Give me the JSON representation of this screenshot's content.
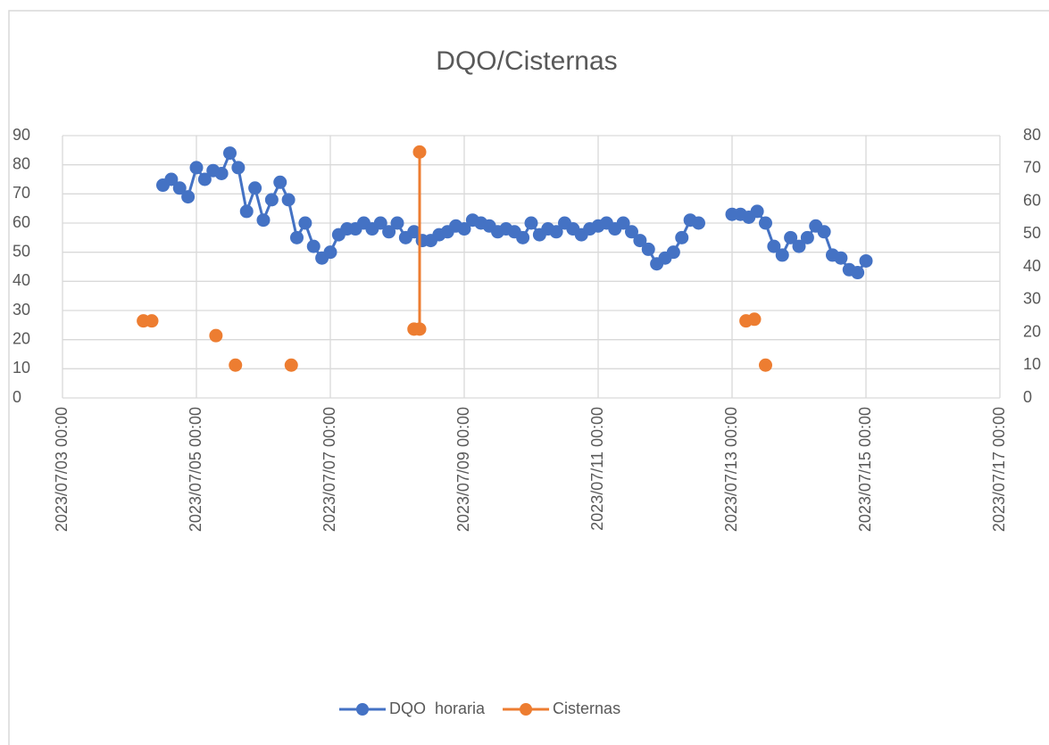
{
  "chart_data": {
    "type": "line",
    "title": "DQO/Cisternas",
    "xlim": [
      "2023/07/03 00:00",
      "2023/07/17 00:00"
    ],
    "xticks": [
      "2023/07/03 00:00",
      "2023/07/05 00:00",
      "2023/07/07 00:00",
      "2023/07/09 00:00",
      "2023/07/11 00:00",
      "2023/07/13 00:00",
      "2023/07/15 00:00",
      "2023/07/17 00:00"
    ],
    "ylim": [
      0,
      90
    ],
    "yticks": [
      0,
      10,
      20,
      30,
      40,
      50,
      60,
      70,
      80,
      90
    ],
    "y2lim": [
      0,
      80
    ],
    "y2ticks": [
      0,
      10,
      20,
      30,
      40,
      50,
      60,
      70,
      80
    ],
    "grid": true,
    "legend": "bottom",
    "series": [
      {
        "name": "DQO  horaria",
        "color": "#4472c4",
        "axis": "y",
        "x": [
          "2023/07/04 12:00",
          "2023/07/04 15:00",
          "2023/07/04 18:00",
          "2023/07/04 21:00",
          "2023/07/05 00:00",
          "2023/07/05 03:00",
          "2023/07/05 06:00",
          "2023/07/05 09:00",
          "2023/07/05 12:00",
          "2023/07/05 15:00",
          "2023/07/05 18:00",
          "2023/07/05 21:00",
          "2023/07/06 00:00",
          "2023/07/06 03:00",
          "2023/07/06 06:00",
          "2023/07/06 09:00",
          "2023/07/06 12:00",
          "2023/07/06 15:00",
          "2023/07/06 18:00",
          "2023/07/06 21:00",
          "2023/07/07 00:00",
          "2023/07/07 03:00",
          "2023/07/07 06:00",
          "2023/07/07 09:00",
          "2023/07/07 12:00",
          "2023/07/07 15:00",
          "2023/07/07 18:00",
          "2023/07/07 21:00",
          "2023/07/08 00:00",
          "2023/07/08 03:00",
          "2023/07/08 06:00",
          "2023/07/08 09:00",
          "2023/07/08 12:00",
          "2023/07/08 15:00",
          "2023/07/08 18:00",
          "2023/07/08 21:00",
          "2023/07/09 00:00",
          "2023/07/09 03:00",
          "2023/07/09 06:00",
          "2023/07/09 09:00",
          "2023/07/09 12:00",
          "2023/07/09 15:00",
          "2023/07/09 18:00",
          "2023/07/09 21:00",
          "2023/07/10 00:00",
          "2023/07/10 03:00",
          "2023/07/10 06:00",
          "2023/07/10 09:00",
          "2023/07/10 12:00",
          "2023/07/10 15:00",
          "2023/07/10 18:00",
          "2023/07/10 21:00",
          "2023/07/11 00:00",
          "2023/07/11 03:00",
          "2023/07/11 06:00",
          "2023/07/11 09:00",
          "2023/07/11 12:00",
          "2023/07/11 15:00",
          "2023/07/11 18:00",
          "2023/07/11 21:00",
          "2023/07/12 00:00",
          "2023/07/12 03:00",
          "2023/07/12 06:00",
          "2023/07/12 09:00",
          "2023/07/12 12:00",
          "2023/07/12 18:00",
          "2023/07/13 00:00",
          "2023/07/13 03:00",
          "2023/07/13 06:00",
          "2023/07/13 09:00",
          "2023/07/13 12:00",
          "2023/07/13 15:00",
          "2023/07/13 18:00",
          "2023/07/13 21:00",
          "2023/07/14 00:00",
          "2023/07/14 03:00",
          "2023/07/14 06:00",
          "2023/07/14 09:00",
          "2023/07/14 12:00",
          "2023/07/14 15:00",
          "2023/07/14 18:00",
          "2023/07/14 21:00",
          "2023/07/15 00:00"
        ],
        "values": [
          73,
          75,
          72,
          69,
          79,
          75,
          78,
          77,
          84,
          79,
          64,
          72,
          61,
          68,
          74,
          68,
          55,
          60,
          52,
          48,
          50,
          56,
          58,
          58,
          60,
          58,
          60,
          57,
          60,
          55,
          57,
          54,
          54,
          56,
          57,
          59,
          58,
          61,
          60,
          59,
          57,
          58,
          57,
          55,
          60,
          56,
          58,
          57,
          60,
          58,
          56,
          58,
          59,
          60,
          58,
          60,
          57,
          54,
          51,
          46,
          48,
          50,
          55,
          61,
          60,
          null,
          63,
          63,
          62,
          64,
          60,
          52,
          49,
          55,
          52,
          55,
          59,
          57,
          49,
          48,
          44,
          43,
          47
        ]
      },
      {
        "name": "Cisternas",
        "color": "#ed7d31",
        "axis": "y2",
        "x": [
          "2023/07/04 05:00",
          "2023/07/04 08:00",
          "2023/07/04 10:00",
          "2023/07/05 07:00",
          "2023/07/05 10:00",
          "2023/07/05 14:00",
          "2023/07/05 18:00",
          "2023/07/06 10:00",
          "2023/07/06 14:00",
          "2023/07/08 06:00",
          "2023/07/08 08:00",
          "2023/07/08 08:00",
          "2023/07/08 12:00",
          "2023/07/13 05:00",
          "2023/07/13 08:00",
          "2023/07/13 10:00",
          "2023/07/13 12:00"
        ],
        "values": [
          23.5,
          23.5,
          null,
          19,
          null,
          10,
          null,
          10,
          null,
          21,
          21,
          75,
          null,
          23.5,
          24,
          null,
          10
        ]
      }
    ]
  }
}
